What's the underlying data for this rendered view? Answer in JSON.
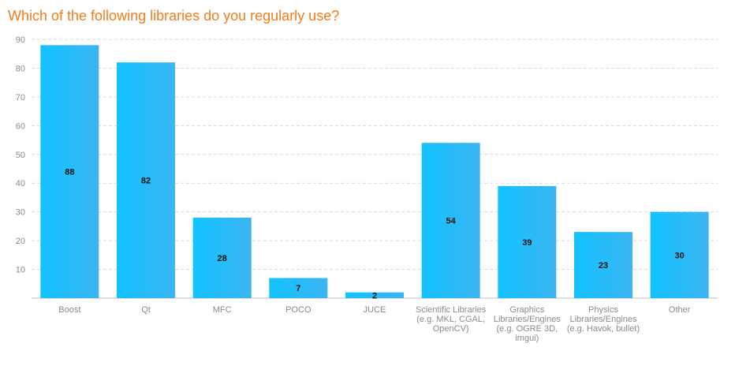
{
  "chart_data": {
    "type": "bar",
    "title": "Which of the following libraries do you regularly use?",
    "categories": [
      [
        "Boost"
      ],
      [
        "Qt"
      ],
      [
        "MFC"
      ],
      [
        "POCO"
      ],
      [
        "JUCE"
      ],
      [
        "Scientific Libraries",
        "(e.g. MKL, CGAL,",
        "OpenCV)"
      ],
      [
        "Graphics",
        "Libraries/Engines",
        "(e.g. OGRE 3D,",
        "imgui)"
      ],
      [
        "Physics",
        "Libraries/Engines",
        "(e.g. Havok, bullet)"
      ],
      [
        "Other"
      ]
    ],
    "values": [
      88,
      82,
      28,
      7,
      2,
      54,
      39,
      23,
      30
    ],
    "ylim": [
      0,
      90
    ],
    "yticks": [
      10,
      20,
      30,
      40,
      50,
      60,
      70,
      80,
      90
    ],
    "grid": true,
    "xlabel": "",
    "ylabel": "",
    "colors": {
      "bar_left": "#12c3ff",
      "bar_right": "#3bb5f2",
      "title": "#f07d1e"
    }
  }
}
